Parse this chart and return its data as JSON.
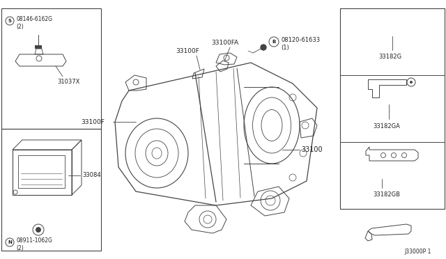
{
  "bg_color": "#ffffff",
  "line_color": "#444444",
  "text_color": "#222222",
  "fig_width": 6.4,
  "fig_height": 3.72,
  "footer": "J33000P 1",
  "labels": {
    "s_part": "08146-6162G",
    "s_qty": "(2)",
    "part_31037x": "31037X",
    "n_part": "08911-1062G",
    "n_qty": "(2)",
    "part_33084": "33084",
    "part_33100fa": "33100FA",
    "part_33100f_top": "33100F",
    "part_33100f_left": "33100F",
    "b_part": "08120-61633",
    "b_qty": "(1)",
    "part_33100": "33100",
    "part_33182g": "33182G",
    "part_33182ga": "33182GA",
    "part_33182gb": "33182GB"
  }
}
